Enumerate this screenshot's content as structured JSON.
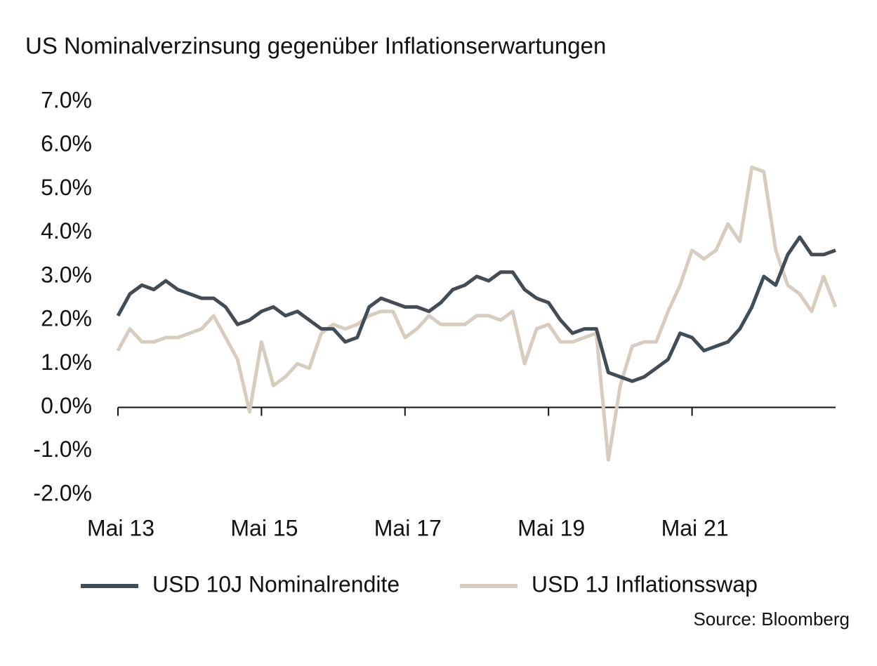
{
  "chart_data": {
    "type": "line",
    "title": "US Nominalverzinsung gegenüber Inflationserwartungen",
    "source": "Source: Bloomberg",
    "legend": "bottom",
    "categories": [
      "Mai 13",
      null,
      null,
      null,
      null,
      null,
      null,
      null,
      null,
      null,
      null,
      null,
      "Mai 15",
      null,
      null,
      null,
      null,
      null,
      null,
      null,
      null,
      null,
      null,
      null,
      "Mai 17",
      null,
      null,
      null,
      null,
      null,
      null,
      null,
      null,
      null,
      null,
      null,
      "Mai 19",
      null,
      null,
      null,
      null,
      null,
      null,
      null,
      null,
      null,
      null,
      null,
      "Mai 21",
      null,
      null,
      null,
      null,
      null,
      null,
      null,
      null,
      null,
      null,
      null,
      null
    ],
    "series": [
      {
        "name": "USD 10J Nominalrendite",
        "color": "#414c55",
        "values": [
          2.1,
          2.6,
          2.8,
          2.7,
          2.9,
          2.7,
          2.6,
          2.5,
          2.5,
          2.3,
          1.9,
          2.0,
          2.2,
          2.3,
          2.1,
          2.2,
          2.0,
          1.8,
          1.8,
          1.5,
          1.6,
          2.3,
          2.5,
          2.4,
          2.3,
          2.3,
          2.2,
          2.4,
          2.7,
          2.8,
          3.0,
          2.9,
          3.1,
          3.1,
          2.7,
          2.5,
          2.4,
          2.0,
          1.7,
          1.8,
          1.8,
          0.8,
          0.7,
          0.6,
          0.7,
          0.9,
          1.1,
          1.7,
          1.6,
          1.3,
          1.4,
          1.5,
          1.8,
          2.3,
          3.0,
          2.8,
          3.5,
          3.9,
          3.5,
          3.5,
          3.6
        ]
      },
      {
        "name": "USD 1J Inflationsswap",
        "color": "#d6cdc0",
        "values": [
          1.3,
          1.8,
          1.5,
          1.5,
          1.6,
          1.6,
          1.7,
          1.8,
          2.1,
          1.6,
          1.1,
          -0.1,
          1.5,
          0.5,
          0.7,
          1.0,
          0.9,
          1.7,
          1.9,
          1.8,
          1.9,
          2.1,
          2.2,
          2.2,
          1.6,
          1.8,
          2.1,
          1.9,
          1.9,
          1.9,
          2.1,
          2.1,
          2.0,
          2.2,
          1.0,
          1.8,
          1.9,
          1.5,
          1.5,
          1.6,
          1.7,
          -1.2,
          0.5,
          1.4,
          1.5,
          1.5,
          2.2,
          2.8,
          3.6,
          3.4,
          3.6,
          4.2,
          3.8,
          5.5,
          5.4,
          3.6,
          2.8,
          2.6,
          2.2,
          3.0,
          2.3
        ]
      }
    ],
    "ylim": [
      -2,
      7
    ],
    "yticks": [
      {
        "value": -2,
        "label": "-2.0%"
      },
      {
        "value": -1,
        "label": "-1.0%"
      },
      {
        "value": 0,
        "label": "0.0%"
      },
      {
        "value": 1,
        "label": "1.0%"
      },
      {
        "value": 2,
        "label": "2.0%"
      },
      {
        "value": 3,
        "label": "3.0%"
      },
      {
        "value": 4,
        "label": "4.0%"
      },
      {
        "value": 5,
        "label": "5.0%"
      },
      {
        "value": 6,
        "label": "6.0%"
      },
      {
        "value": 7,
        "label": "7.0%"
      }
    ]
  }
}
